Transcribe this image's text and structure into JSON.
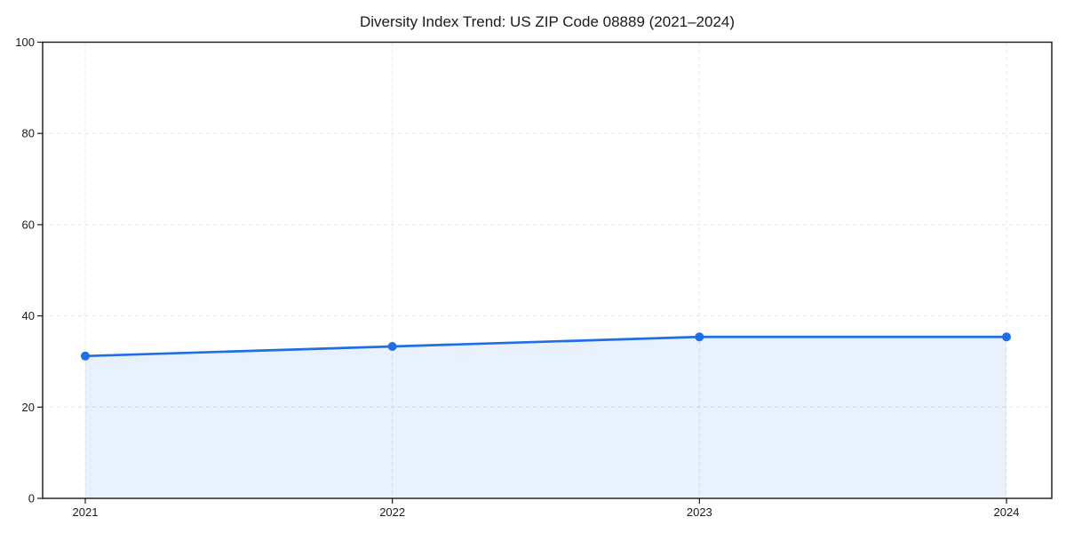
{
  "chart_data": {
    "type": "area",
    "title": "Diversity Index Trend: US ZIP Code 08889 (2021–2024)",
    "x": [
      "2021",
      "2022",
      "2023",
      "2024"
    ],
    "series": [
      {
        "name": "Diversity Index",
        "values": [
          31.2,
          33.3,
          35.4,
          35.4
        ]
      }
    ],
    "xlabel": "",
    "ylabel": "",
    "ylim": [
      0,
      100
    ],
    "yticks": [
      0,
      20,
      40,
      60,
      80,
      100
    ],
    "grid": true,
    "grid_style": "dashed",
    "legend": "none",
    "marker": "circle",
    "colors": {
      "line": "#1f6ee6",
      "fill": "#1f6ee6",
      "fill_opacity": 0.1,
      "grid": "#e4e4e4",
      "axis": "#1a1a1a",
      "text": "#1a1a1a",
      "background": "#ffffff"
    }
  }
}
